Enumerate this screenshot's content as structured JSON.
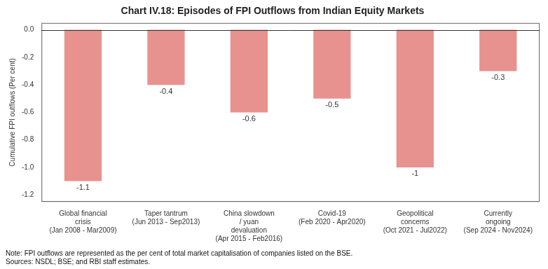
{
  "chart_data": {
    "type": "bar",
    "title": "Chart IV.18: Episodes of FPI Outflows from Indian Equity Markets",
    "categories": [
      "Global financial\ncrisis\n(Jan 2008 - Mar2009)",
      "Taper tantrum\n(Jun 2013 - Sep2013)",
      "China slowdown\n/ yuan\ndevaluation\n(Apr 2015 - Feb2016)",
      "Covid-19\n(Feb 2020 - Apr2020)",
      "Geopolitical\nconcerns\n(Oct 2021 - Jul2022)",
      "Currently\nongoing\n(Sep 2024 - Nov2024)"
    ],
    "values": [
      -1.1,
      -0.4,
      -0.6,
      -0.5,
      -1.0,
      -0.3
    ],
    "color": "#e8928f",
    "ylabel": "Cumulative FPI outflows (Per cent)",
    "ylim": [
      -1.25,
      0.05
    ],
    "yticks": [
      {
        "value": 0.0,
        "label": "0.0"
      },
      -0.2,
      -0.4,
      -0.6,
      -0.8,
      {
        "value": -1.0,
        "label": "-1.0"
      },
      -1.2
    ],
    "annotations": [
      "Note: FPI outflows are represented as the per cent of total market capitalisation of companies listed on the BSE.",
      "Sources: NSDL; BSE; and RBI staff estimates."
    ],
    "data_labels": true,
    "grid": false
  }
}
